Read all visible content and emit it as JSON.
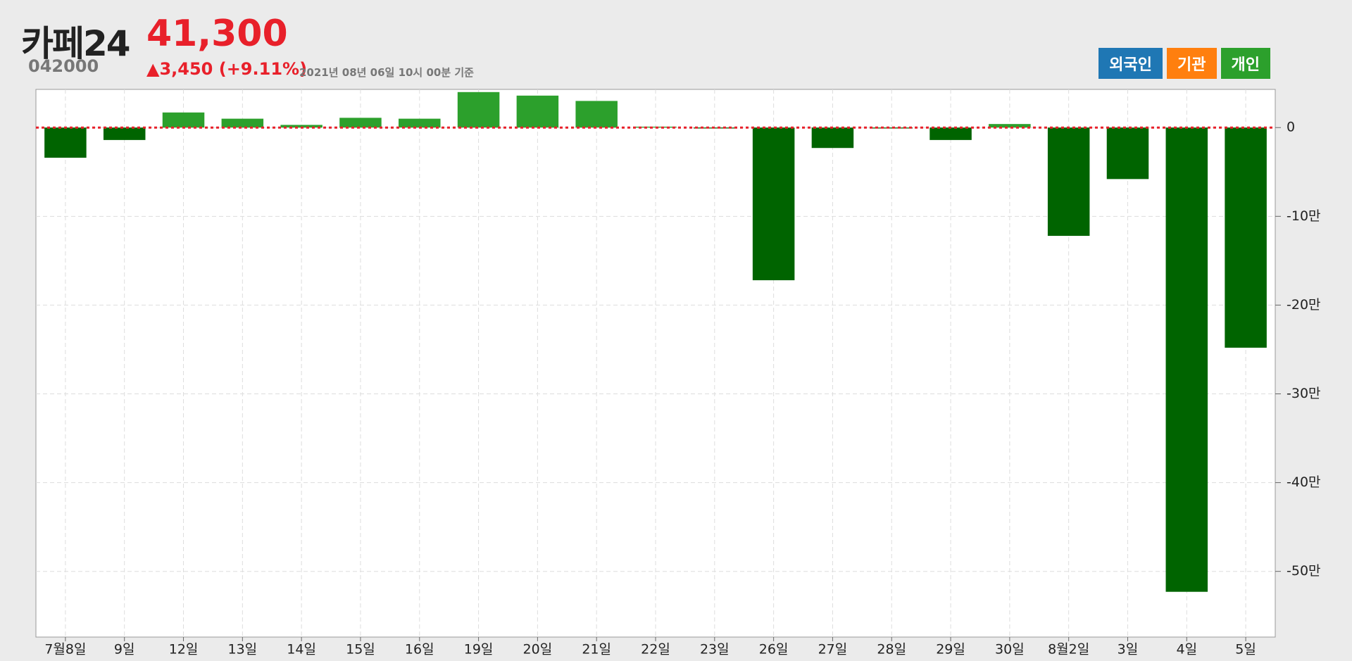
{
  "header": {
    "name": "카페24",
    "code": "042000",
    "price": "41,300",
    "change": "▲3,450 (+9.11%)",
    "timestamp": "2021년 08년 06일 10시 00분 기준"
  },
  "buttons": [
    {
      "label": "외국인",
      "color": "#1f77b4"
    },
    {
      "label": "기관",
      "color": "#ff7f0e"
    },
    {
      "label": "개인",
      "color": "#2ca02c"
    }
  ],
  "chart_data": {
    "type": "bar",
    "categories": [
      "7월8일",
      "9일",
      "12일",
      "13일",
      "14일",
      "15일",
      "16일",
      "19일",
      "20일",
      "21일",
      "22일",
      "23일",
      "26일",
      "27일",
      "28일",
      "29일",
      "30일",
      "8월2일",
      "3일",
      "4일",
      "5일"
    ],
    "values": [
      -3.4,
      -1.4,
      1.7,
      1.0,
      0.3,
      1.1,
      1.0,
      4.0,
      3.6,
      3.0,
      0.1,
      -0.1,
      -17.2,
      -2.3,
      -0.1,
      -1.4,
      0.4,
      -12.2,
      -5.8,
      -52.3,
      -24.8
    ],
    "positive_color": "#2ca02c",
    "negative_color": "#006400",
    "zero_line_color": "#e8202a",
    "ylim": [
      -57.4,
      4.3
    ],
    "yticks": [
      0,
      {
        "value": -10,
        "label": "-10만"
      },
      {
        "value": -20,
        "label": "-20만"
      },
      {
        "value": -30,
        "label": "-30만"
      },
      {
        "value": -40,
        "label": "-40만"
      },
      {
        "value": -50,
        "label": "-50만"
      }
    ],
    "grid": true
  }
}
